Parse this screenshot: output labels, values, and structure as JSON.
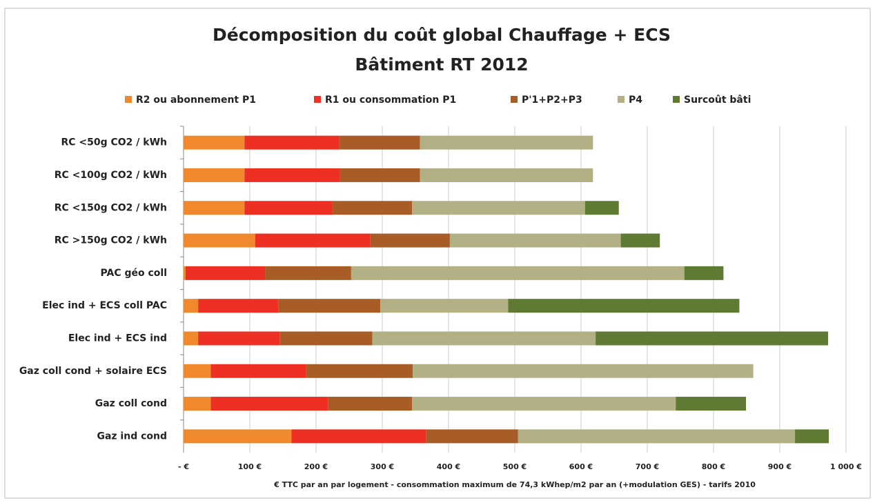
{
  "chart_data": {
    "type": "stacked-barh",
    "title": "Décomposition du coût global Chauffage + ECS",
    "subtitle": "Bâtiment RT 2012",
    "xlabel": "€ TTC par an par logement  - consommation  maximum de 74,3 kWhep/m2 par an (+modulation GES) - tarifs 2010",
    "categories": [
      "RC <50g CO2 / kWh",
      "RC <100g CO2 / kWh",
      "RC <150g CO2 / kWh",
      "RC >150g CO2 / kWh",
      "PAC géo coll",
      "Elec ind + ECS coll PAC",
      "Elec ind + ECS ind",
      "Gaz coll cond + solaire ECS",
      "Gaz coll cond",
      "Gaz ind cond"
    ],
    "series": [
      {
        "name": "R2 ou abonnement P1",
        "color": "#f0892e",
        "values": [
          92,
          92,
          92,
          108,
          3,
          22,
          22,
          41,
          41,
          163
        ]
      },
      {
        "name": "R1 ou consommation P1",
        "color": "#ee3024",
        "values": [
          143,
          144,
          132,
          174,
          120,
          121,
          123,
          144,
          177,
          203
        ]
      },
      {
        "name": "P'1+P2+P3",
        "color": "#a85d26",
        "values": [
          122,
          121,
          121,
          120,
          130,
          154,
          140,
          161,
          127,
          139
        ]
      },
      {
        "name": "P4",
        "color": "#b3b085",
        "values": [
          261,
          261,
          261,
          258,
          503,
          193,
          337,
          514,
          398,
          418
        ]
      },
      {
        "name": "Surcoût bâti",
        "color": "#5f7a33",
        "values": [
          0,
          0,
          51,
          59,
          59,
          349,
          351,
          0,
          106,
          51
        ]
      }
    ],
    "xlim": [
      0,
      1000
    ],
    "xticks": [
      {
        "value": 0,
        "label": "-  €"
      },
      {
        "value": 100,
        "label": "100 €"
      },
      {
        "value": 200,
        "label": "200 €"
      },
      {
        "value": 300,
        "label": "300 €"
      },
      {
        "value": 400,
        "label": "400 €"
      },
      {
        "value": 500,
        "label": "500 €"
      },
      {
        "value": 600,
        "label": "600 €"
      },
      {
        "value": 700,
        "label": "700 €"
      },
      {
        "value": 800,
        "label": "800 €"
      },
      {
        "value": 900,
        "label": "900 €"
      },
      {
        "value": 1000,
        "label": "1 000 €"
      }
    ],
    "grid": true,
    "legend": "top"
  }
}
